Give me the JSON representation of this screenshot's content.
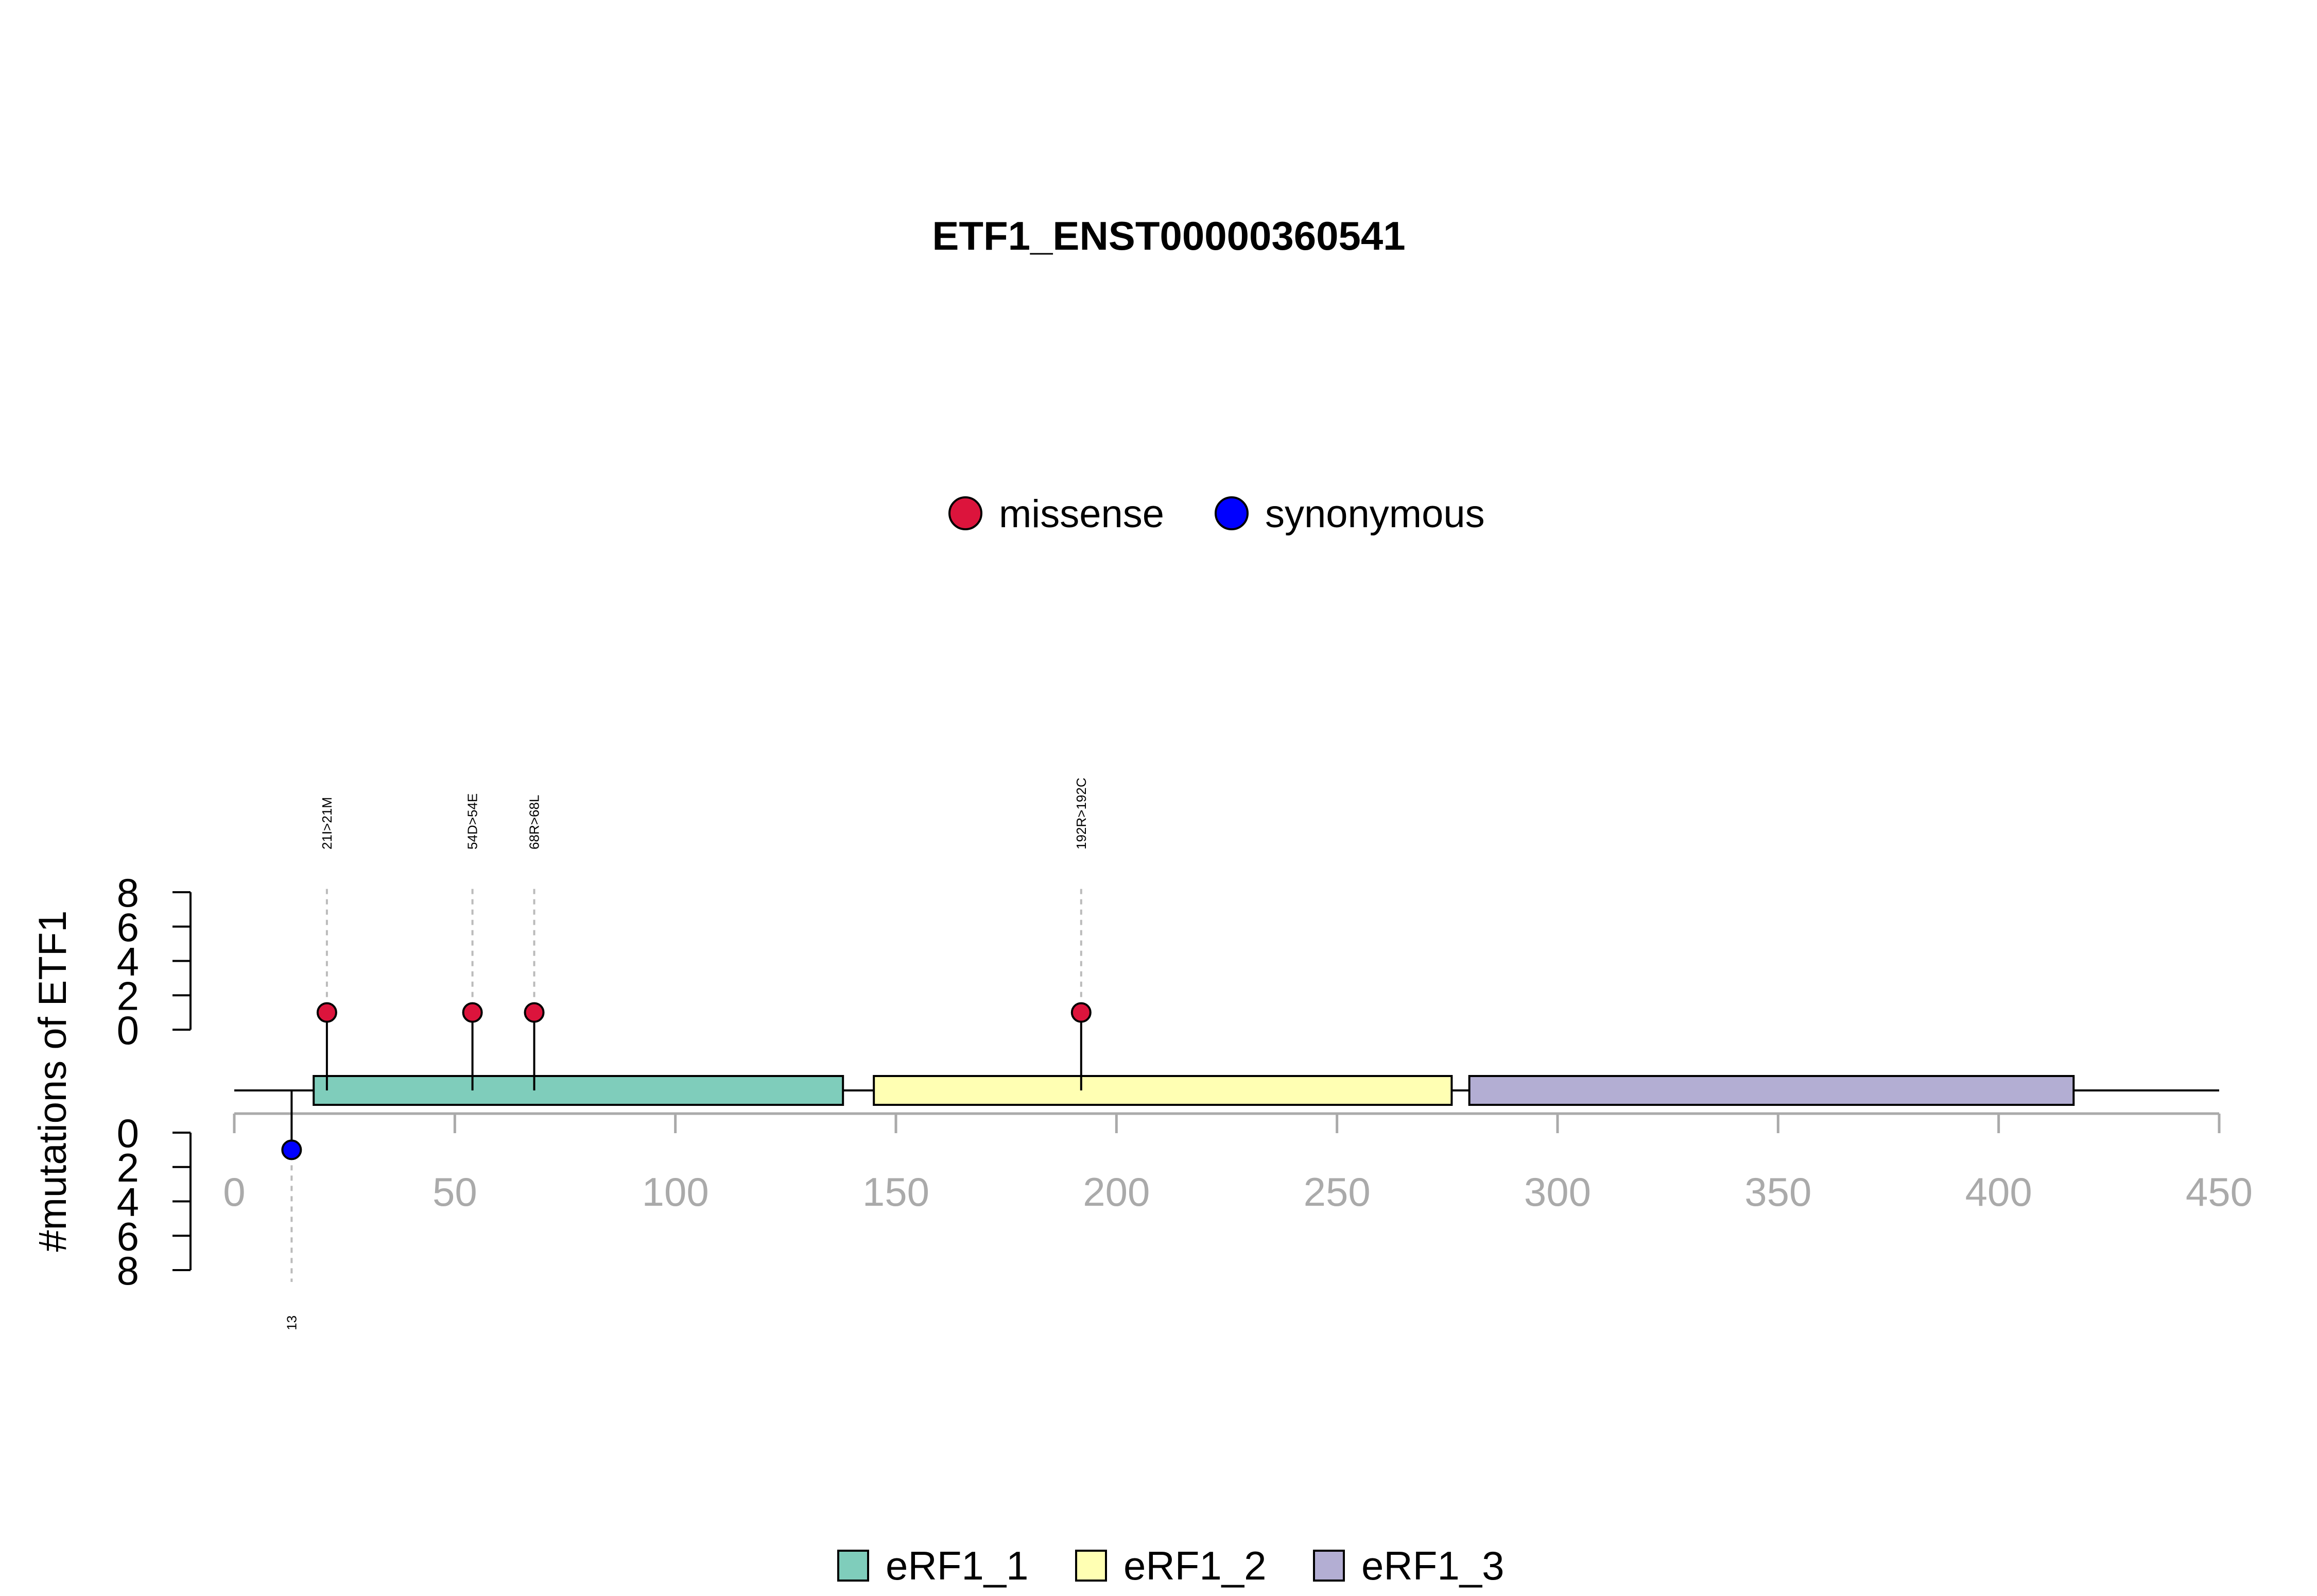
{
  "chart_data": {
    "type": "lollipop",
    "title": "ETF1_ENST00000360541",
    "ylabel": "#mutations of ETF1",
    "xlim": [
      0,
      450
    ],
    "x_ticks": [
      "0",
      "50",
      "100",
      "150",
      "200",
      "250",
      "300",
      "350",
      "400",
      "450"
    ],
    "y_ticks_upper": [
      "0",
      "2",
      "4",
      "6",
      "8"
    ],
    "y_ticks_lower": [
      "0",
      "2",
      "4",
      "6",
      "8"
    ],
    "ylim": [
      0,
      8
    ],
    "legend_top": [
      {
        "name": "missense",
        "color": "#dc143c"
      },
      {
        "name": "synonymous",
        "color": "#0000ff"
      }
    ],
    "domains": [
      {
        "name": "eRF1_1",
        "start": 18,
        "end": 138,
        "color": "#7fcdbb"
      },
      {
        "name": "eRF1_2",
        "start": 145,
        "end": 276,
        "color": "#ffffb3"
      },
      {
        "name": "eRF1_3",
        "start": 280,
        "end": 417,
        "color": "#b3aed3"
      }
    ],
    "mutations_upper": [
      {
        "position": 21,
        "count": 1,
        "label": "21I>21M",
        "type": "missense"
      },
      {
        "position": 54,
        "count": 1,
        "label": "54D>54E",
        "type": "missense"
      },
      {
        "position": 68,
        "count": 1,
        "label": "68R>68L",
        "type": "missense"
      },
      {
        "position": 192,
        "count": 1,
        "label": "192R>192C",
        "type": "missense"
      }
    ],
    "mutations_lower": [
      {
        "position": 13,
        "count": 1,
        "label": "13",
        "type": "synonymous"
      }
    ],
    "colors": {
      "missense": "#dc143c",
      "synonymous": "#0000ff",
      "axis_x": "#aaaaaa",
      "axis_y": "#000000"
    }
  }
}
